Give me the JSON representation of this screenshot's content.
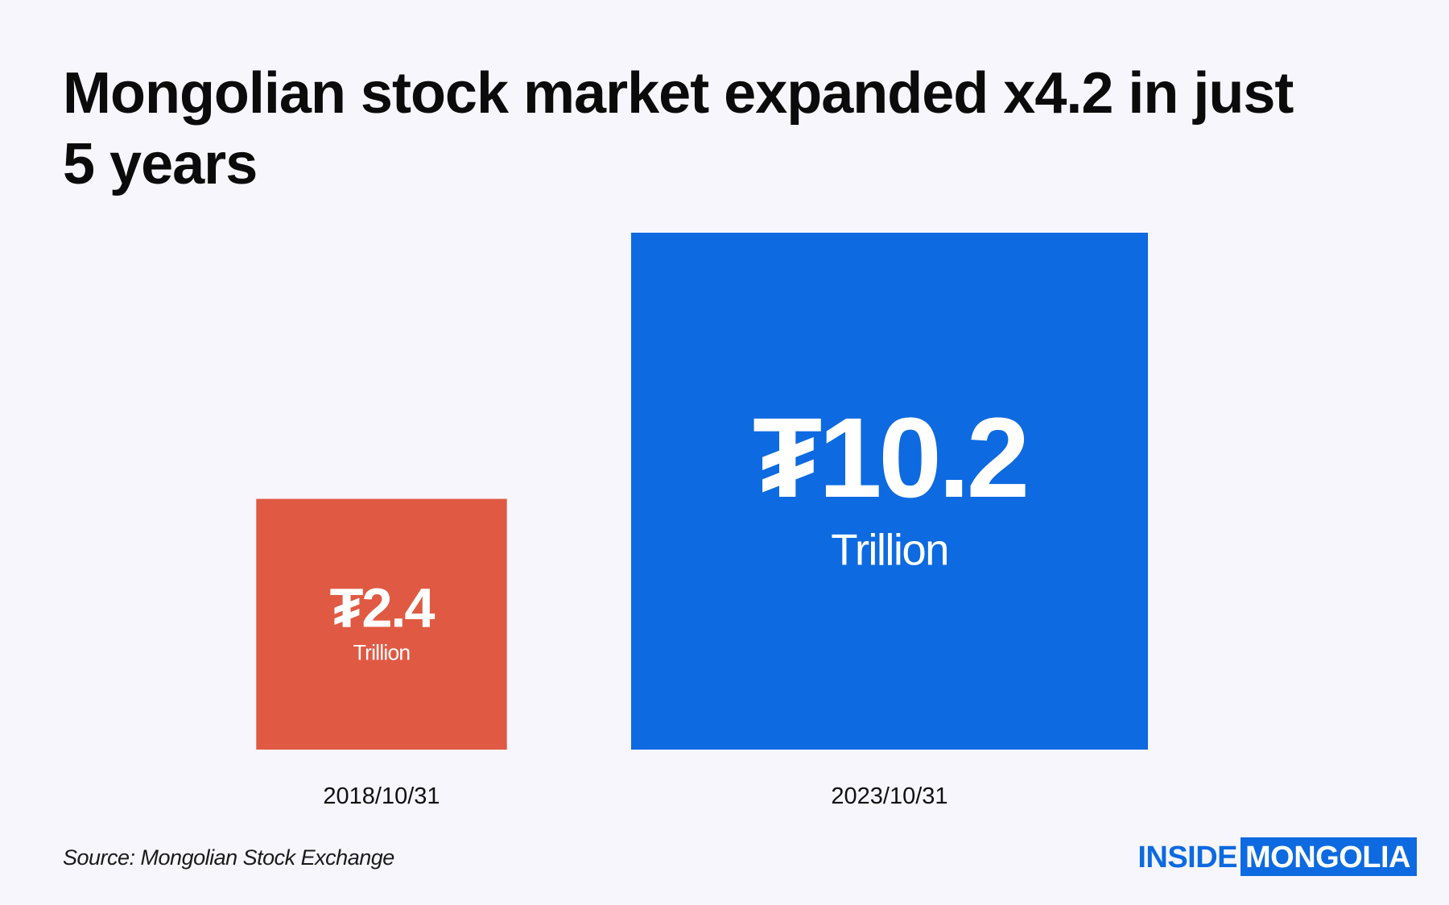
{
  "title": "Mongolian stock market expanded x4.2 in just 5 years",
  "chart_data": {
    "type": "bar",
    "encoding": "square-area",
    "title": "Mongolian stock market expanded x4.2 in just 5 years",
    "categories": [
      "2018/10/31",
      "2023/10/31"
    ],
    "values": [
      2.4,
      10.2
    ],
    "value_labels": [
      "₮2.4",
      "₮10.2"
    ],
    "unit_label": "Trillion",
    "colors": [
      "#e05a43",
      "#0d6ae0"
    ],
    "label_color": "#ffffff"
  },
  "source": "Source: Mongolian Stock Exchange",
  "logo": {
    "part1": "INSIDE",
    "part2": "MONGOLIA",
    "color": "#0d6ae0"
  }
}
